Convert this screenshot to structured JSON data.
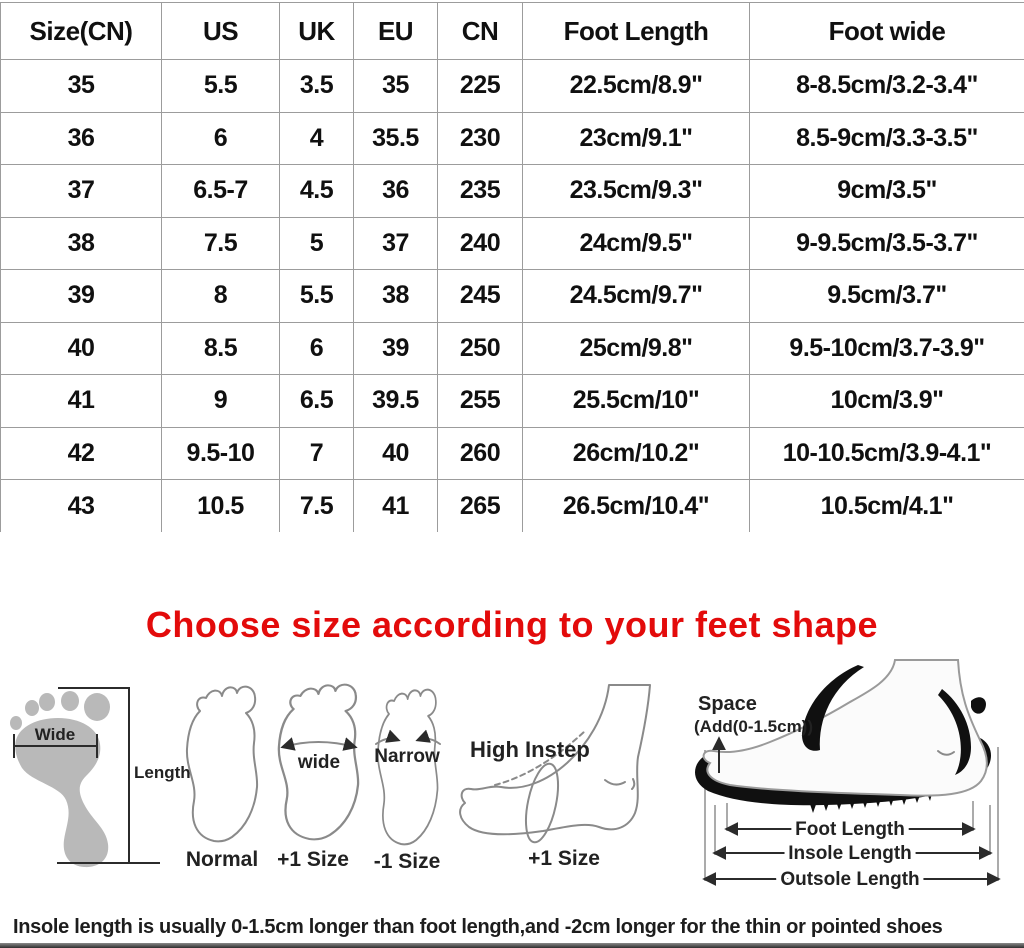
{
  "table": {
    "headers": [
      "Size(CN)",
      "US",
      "UK",
      "EU",
      "CN",
      "Foot Length",
      "Foot wide"
    ],
    "rows": [
      [
        "35",
        "5.5",
        "3.5",
        "35",
        "225",
        "22.5cm/8.9\"",
        "8-8.5cm/3.2-3.4\""
      ],
      [
        "36",
        "6",
        "4",
        "35.5",
        "230",
        "23cm/9.1\"",
        "8.5-9cm/3.3-3.5\""
      ],
      [
        "37",
        "6.5-7",
        "4.5",
        "36",
        "235",
        "23.5cm/9.3\"",
        "9cm/3.5\""
      ],
      [
        "38",
        "7.5",
        "5",
        "37",
        "240",
        "24cm/9.5\"",
        "9-9.5cm/3.5-3.7\""
      ],
      [
        "39",
        "8",
        "5.5",
        "38",
        "245",
        "24.5cm/9.7\"",
        "9.5cm/3.7\""
      ],
      [
        "40",
        "8.5",
        "6",
        "39",
        "250",
        "25cm/9.8\"",
        "9.5-10cm/3.7-3.9\""
      ],
      [
        "41",
        "9",
        "6.5",
        "39.5",
        "255",
        "25.5cm/10\"",
        "10cm/3.9\""
      ],
      [
        "42",
        "9.5-10",
        "7",
        "40",
        "260",
        "26cm/10.2\"",
        "10-10.5cm/3.9-4.1\""
      ],
      [
        "43",
        "10.5",
        "7.5",
        "41",
        "265",
        "26.5cm/10.4\"",
        "10.5cm/4.1\""
      ]
    ]
  },
  "heading": {
    "text": "Choose size according to your feet shape"
  },
  "diagrams": {
    "measure": {
      "wide_label": "Wide",
      "length_label": "Length"
    },
    "feet": {
      "normal_caption": "Normal",
      "wide_label": "wide",
      "wide_caption": "+1 Size",
      "narrow_label": "Narrow",
      "narrow_caption": "-1 Size",
      "high_instep_label": "High Instep",
      "high_instep_caption": "+1 Size"
    },
    "shoe": {
      "space_label": "Space",
      "space_note": "(Add(0-1.5cm))",
      "foot_length_label": "Foot Length",
      "insole_length_label": "Insole Length",
      "outsole_length_label": "Outsole Length"
    }
  },
  "footnote": "Insole length is usually 0-1.5cm longer than foot length,and -2cm longer for the thin or pointed shoes",
  "colors": {
    "heading_red": "#e30b0b",
    "table_border": "#9c9c9c",
    "footprint_gray": "#b9b9b9",
    "ink": "#2b2b2b"
  }
}
